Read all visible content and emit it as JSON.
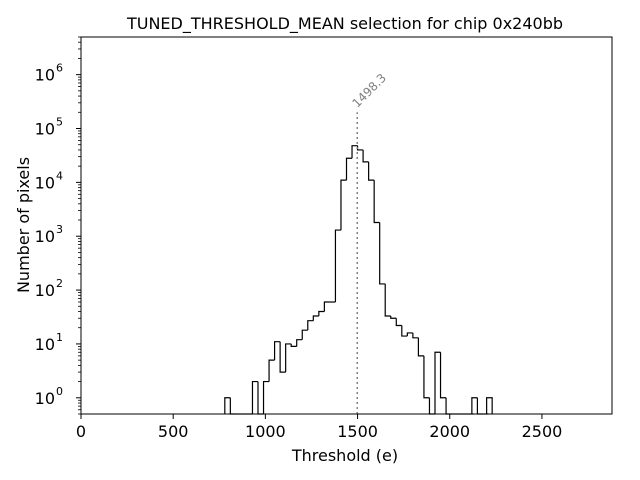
{
  "chart_data": {
    "type": "histogram",
    "title": "TUNED_THRESHOLD_MEAN selection for chip 0x240bb",
    "xlabel": "Threshold (e)",
    "ylabel": "Number of pixels",
    "xlim": [
      0,
      2880
    ],
    "ylim": [
      0.5,
      5000000
    ],
    "yscale": "log",
    "xticks": [
      0,
      500,
      1000,
      1500,
      2000,
      2500
    ],
    "xtick_labels": [
      "0",
      "500",
      "1000",
      "1500",
      "2000",
      "2500"
    ],
    "yticks": [
      1,
      10,
      100,
      1000,
      10000,
      100000,
      1000000
    ],
    "ytick_labels": [
      {
        "base": "10",
        "exp": "0"
      },
      {
        "base": "10",
        "exp": "1"
      },
      {
        "base": "10",
        "exp": "2"
      },
      {
        "base": "10",
        "exp": "3"
      },
      {
        "base": "10",
        "exp": "4"
      },
      {
        "base": "10",
        "exp": "5"
      },
      {
        "base": "10",
        "exp": "6"
      }
    ],
    "bin_width": 30,
    "bins": [
      {
        "x0": 780,
        "count": 1
      },
      {
        "x0": 810,
        "count": 0
      },
      {
        "x0": 840,
        "count": 0
      },
      {
        "x0": 870,
        "count": 0
      },
      {
        "x0": 900,
        "count": 0
      },
      {
        "x0": 930,
        "count": 2
      },
      {
        "x0": 960,
        "count": 0
      },
      {
        "x0": 990,
        "count": 2
      },
      {
        "x0": 1020,
        "count": 5
      },
      {
        "x0": 1050,
        "count": 11
      },
      {
        "x0": 1080,
        "count": 3
      },
      {
        "x0": 1110,
        "count": 10
      },
      {
        "x0": 1140,
        "count": 9
      },
      {
        "x0": 1170,
        "count": 12
      },
      {
        "x0": 1200,
        "count": 18
      },
      {
        "x0": 1230,
        "count": 27
      },
      {
        "x0": 1260,
        "count": 33
      },
      {
        "x0": 1290,
        "count": 40
      },
      {
        "x0": 1320,
        "count": 60
      },
      {
        "x0": 1350,
        "count": 60
      },
      {
        "x0": 1380,
        "count": 1300
      },
      {
        "x0": 1410,
        "count": 11000
      },
      {
        "x0": 1440,
        "count": 28000
      },
      {
        "x0": 1470,
        "count": 48000
      },
      {
        "x0": 1500,
        "count": 40000
      },
      {
        "x0": 1530,
        "count": 24000
      },
      {
        "x0": 1560,
        "count": 11000
      },
      {
        "x0": 1590,
        "count": 1800
      },
      {
        "x0": 1620,
        "count": 130
      },
      {
        "x0": 1650,
        "count": 33
      },
      {
        "x0": 1680,
        "count": 30
      },
      {
        "x0": 1710,
        "count": 22
      },
      {
        "x0": 1740,
        "count": 14
      },
      {
        "x0": 1770,
        "count": 16
      },
      {
        "x0": 1800,
        "count": 13
      },
      {
        "x0": 1830,
        "count": 6
      },
      {
        "x0": 1860,
        "count": 1
      },
      {
        "x0": 1890,
        "count": 0
      },
      {
        "x0": 1920,
        "count": 7
      },
      {
        "x0": 1950,
        "count": 1
      },
      {
        "x0": 1980,
        "count": 0
      },
      {
        "x0": 2010,
        "count": 0
      },
      {
        "x0": 2040,
        "count": 0
      },
      {
        "x0": 2070,
        "count": 0
      },
      {
        "x0": 2100,
        "count": 0
      },
      {
        "x0": 2120,
        "count": 1
      },
      {
        "x0": 2150,
        "count": 0
      },
      {
        "x0": 2180,
        "count": 0
      },
      {
        "x0": 2200,
        "count": 1
      }
    ],
    "mean_line": {
      "x": 1498.3,
      "label": "1498.3",
      "color": "#808080"
    },
    "line_color": "#000000"
  }
}
